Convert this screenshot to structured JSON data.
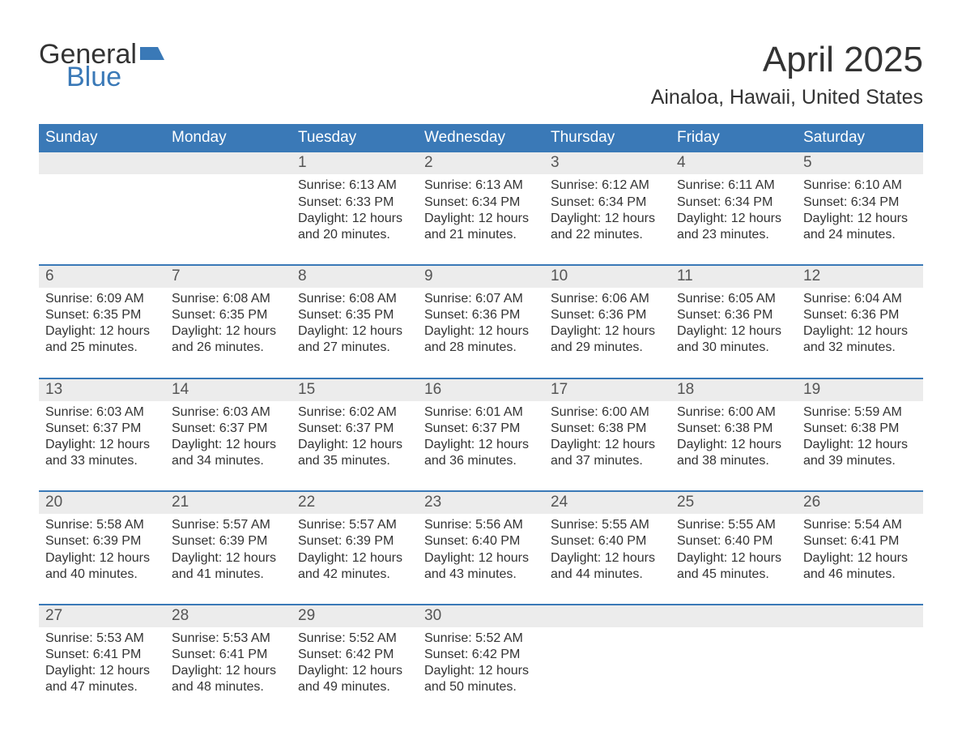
{
  "logo": {
    "line1": "General",
    "line2": "Blue",
    "flag_color": "#3a79b7",
    "text_color": "#333333"
  },
  "title": {
    "month": "April 2025",
    "location": "Ainaloa, Hawaii, United States"
  },
  "colors": {
    "header_bg": "#3a79b7",
    "header_text": "#ffffff",
    "daynum_bg": "#ececec",
    "daynum_text": "#555555",
    "body_text": "#333333",
    "week_divider": "#3a79b7",
    "page_bg": "#ffffff"
  },
  "typography": {
    "month_title_pt": 44,
    "location_pt": 25,
    "weekday_pt": 19,
    "daynum_pt": 19,
    "body_pt": 16,
    "logo_pt": 34,
    "font_family": "Arial"
  },
  "weekdays": [
    "Sunday",
    "Monday",
    "Tuesday",
    "Wednesday",
    "Thursday",
    "Friday",
    "Saturday"
  ],
  "weeks": [
    [
      {
        "n": "",
        "sunrise": "",
        "sunset": "",
        "daylight": ""
      },
      {
        "n": "",
        "sunrise": "",
        "sunset": "",
        "daylight": ""
      },
      {
        "n": "1",
        "sunrise": "Sunrise: 6:13 AM",
        "sunset": "Sunset: 6:33 PM",
        "daylight": "Daylight: 12 hours and 20 minutes."
      },
      {
        "n": "2",
        "sunrise": "Sunrise: 6:13 AM",
        "sunset": "Sunset: 6:34 PM",
        "daylight": "Daylight: 12 hours and 21 minutes."
      },
      {
        "n": "3",
        "sunrise": "Sunrise: 6:12 AM",
        "sunset": "Sunset: 6:34 PM",
        "daylight": "Daylight: 12 hours and 22 minutes."
      },
      {
        "n": "4",
        "sunrise": "Sunrise: 6:11 AM",
        "sunset": "Sunset: 6:34 PM",
        "daylight": "Daylight: 12 hours and 23 minutes."
      },
      {
        "n": "5",
        "sunrise": "Sunrise: 6:10 AM",
        "sunset": "Sunset: 6:34 PM",
        "daylight": "Daylight: 12 hours and 24 minutes."
      }
    ],
    [
      {
        "n": "6",
        "sunrise": "Sunrise: 6:09 AM",
        "sunset": "Sunset: 6:35 PM",
        "daylight": "Daylight: 12 hours and 25 minutes."
      },
      {
        "n": "7",
        "sunrise": "Sunrise: 6:08 AM",
        "sunset": "Sunset: 6:35 PM",
        "daylight": "Daylight: 12 hours and 26 minutes."
      },
      {
        "n": "8",
        "sunrise": "Sunrise: 6:08 AM",
        "sunset": "Sunset: 6:35 PM",
        "daylight": "Daylight: 12 hours and 27 minutes."
      },
      {
        "n": "9",
        "sunrise": "Sunrise: 6:07 AM",
        "sunset": "Sunset: 6:36 PM",
        "daylight": "Daylight: 12 hours and 28 minutes."
      },
      {
        "n": "10",
        "sunrise": "Sunrise: 6:06 AM",
        "sunset": "Sunset: 6:36 PM",
        "daylight": "Daylight: 12 hours and 29 minutes."
      },
      {
        "n": "11",
        "sunrise": "Sunrise: 6:05 AM",
        "sunset": "Sunset: 6:36 PM",
        "daylight": "Daylight: 12 hours and 30 minutes."
      },
      {
        "n": "12",
        "sunrise": "Sunrise: 6:04 AM",
        "sunset": "Sunset: 6:36 PM",
        "daylight": "Daylight: 12 hours and 32 minutes."
      }
    ],
    [
      {
        "n": "13",
        "sunrise": "Sunrise: 6:03 AM",
        "sunset": "Sunset: 6:37 PM",
        "daylight": "Daylight: 12 hours and 33 minutes."
      },
      {
        "n": "14",
        "sunrise": "Sunrise: 6:03 AM",
        "sunset": "Sunset: 6:37 PM",
        "daylight": "Daylight: 12 hours and 34 minutes."
      },
      {
        "n": "15",
        "sunrise": "Sunrise: 6:02 AM",
        "sunset": "Sunset: 6:37 PM",
        "daylight": "Daylight: 12 hours and 35 minutes."
      },
      {
        "n": "16",
        "sunrise": "Sunrise: 6:01 AM",
        "sunset": "Sunset: 6:37 PM",
        "daylight": "Daylight: 12 hours and 36 minutes."
      },
      {
        "n": "17",
        "sunrise": "Sunrise: 6:00 AM",
        "sunset": "Sunset: 6:38 PM",
        "daylight": "Daylight: 12 hours and 37 minutes."
      },
      {
        "n": "18",
        "sunrise": "Sunrise: 6:00 AM",
        "sunset": "Sunset: 6:38 PM",
        "daylight": "Daylight: 12 hours and 38 minutes."
      },
      {
        "n": "19",
        "sunrise": "Sunrise: 5:59 AM",
        "sunset": "Sunset: 6:38 PM",
        "daylight": "Daylight: 12 hours and 39 minutes."
      }
    ],
    [
      {
        "n": "20",
        "sunrise": "Sunrise: 5:58 AM",
        "sunset": "Sunset: 6:39 PM",
        "daylight": "Daylight: 12 hours and 40 minutes."
      },
      {
        "n": "21",
        "sunrise": "Sunrise: 5:57 AM",
        "sunset": "Sunset: 6:39 PM",
        "daylight": "Daylight: 12 hours and 41 minutes."
      },
      {
        "n": "22",
        "sunrise": "Sunrise: 5:57 AM",
        "sunset": "Sunset: 6:39 PM",
        "daylight": "Daylight: 12 hours and 42 minutes."
      },
      {
        "n": "23",
        "sunrise": "Sunrise: 5:56 AM",
        "sunset": "Sunset: 6:40 PM",
        "daylight": "Daylight: 12 hours and 43 minutes."
      },
      {
        "n": "24",
        "sunrise": "Sunrise: 5:55 AM",
        "sunset": "Sunset: 6:40 PM",
        "daylight": "Daylight: 12 hours and 44 minutes."
      },
      {
        "n": "25",
        "sunrise": "Sunrise: 5:55 AM",
        "sunset": "Sunset: 6:40 PM",
        "daylight": "Daylight: 12 hours and 45 minutes."
      },
      {
        "n": "26",
        "sunrise": "Sunrise: 5:54 AM",
        "sunset": "Sunset: 6:41 PM",
        "daylight": "Daylight: 12 hours and 46 minutes."
      }
    ],
    [
      {
        "n": "27",
        "sunrise": "Sunrise: 5:53 AM",
        "sunset": "Sunset: 6:41 PM",
        "daylight": "Daylight: 12 hours and 47 minutes."
      },
      {
        "n": "28",
        "sunrise": "Sunrise: 5:53 AM",
        "sunset": "Sunset: 6:41 PM",
        "daylight": "Daylight: 12 hours and 48 minutes."
      },
      {
        "n": "29",
        "sunrise": "Sunrise: 5:52 AM",
        "sunset": "Sunset: 6:42 PM",
        "daylight": "Daylight: 12 hours and 49 minutes."
      },
      {
        "n": "30",
        "sunrise": "Sunrise: 5:52 AM",
        "sunset": "Sunset: 6:42 PM",
        "daylight": "Daylight: 12 hours and 50 minutes."
      },
      {
        "n": "",
        "sunrise": "",
        "sunset": "",
        "daylight": ""
      },
      {
        "n": "",
        "sunrise": "",
        "sunset": "",
        "daylight": ""
      },
      {
        "n": "",
        "sunrise": "",
        "sunset": "",
        "daylight": ""
      }
    ]
  ]
}
